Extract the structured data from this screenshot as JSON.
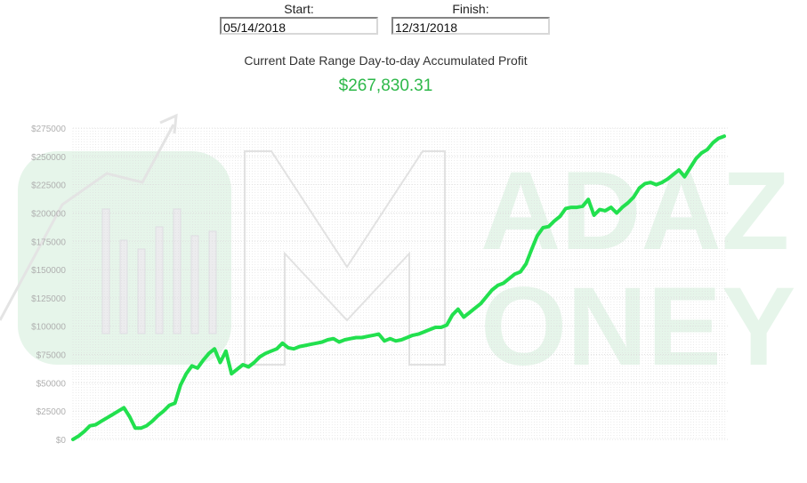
{
  "controls": {
    "start_label": "Start:",
    "start_value": "05/14/2018",
    "finish_label": "Finish:",
    "finish_value": "12/31/2018"
  },
  "summary": {
    "title": "Current Date Range Day-to-day Accumulated Profit",
    "value": "$267,830.31"
  },
  "watermark": {
    "text_line1": "ADAZ",
    "text_line2": "ONEY"
  },
  "colors": {
    "line": "#22e04e",
    "value": "#2eb84a",
    "grid": "#dddddd",
    "watermark_green": "#e6f5ea"
  },
  "chart_data": {
    "type": "line",
    "title": "",
    "xlabel": "",
    "ylabel": "",
    "ylim": [
      0,
      275000
    ],
    "yticks": [
      0,
      25000,
      50000,
      75000,
      100000,
      125000,
      150000,
      175000,
      200000,
      225000,
      250000,
      275000
    ],
    "ytick_labels": [
      "$0",
      "$25000",
      "$50000",
      "$75000",
      "$100000",
      "$125000",
      "$150000",
      "$175000",
      "$200000",
      "$225000",
      "$250000",
      "$275000"
    ],
    "grid": true,
    "x_start": "05/14/2018",
    "x_end": "12/31/2018",
    "series": [
      {
        "values": [
          0,
          3000,
          7000,
          12000,
          13000,
          16000,
          19000,
          22000,
          25000,
          28000,
          20000,
          10000,
          10000,
          12000,
          16000,
          21000,
          25000,
          30000,
          32000,
          48000,
          58000,
          65000,
          63000,
          70000,
          76000,
          80000,
          68000,
          78000,
          58000,
          62000,
          66000,
          64000,
          68000,
          73000,
          76000,
          78000,
          80000,
          85000,
          81000,
          80000,
          82000,
          83000,
          84000,
          85000,
          86000,
          88000,
          89000,
          86000,
          88000,
          89000,
          90000,
          90000,
          91000,
          92000,
          93000,
          87000,
          89000,
          87000,
          88000,
          90000,
          92000,
          93000,
          95000,
          97000,
          99000,
          99000,
          101000,
          110000,
          115000,
          108000,
          112000,
          116000,
          120000,
          126000,
          132000,
          136000,
          138000,
          142000,
          146000,
          148000,
          155000,
          168000,
          180000,
          187000,
          188000,
          193000,
          197000,
          204000,
          205000,
          205000,
          206000,
          212000,
          198000,
          203000,
          202000,
          205000,
          200000,
          205000,
          209000,
          214000,
          222000,
          226000,
          227000,
          225000,
          227000,
          230000,
          234000,
          238000,
          232000,
          240000,
          248000,
          253000,
          256000,
          262000,
          266000,
          267830
        ]
      }
    ]
  }
}
